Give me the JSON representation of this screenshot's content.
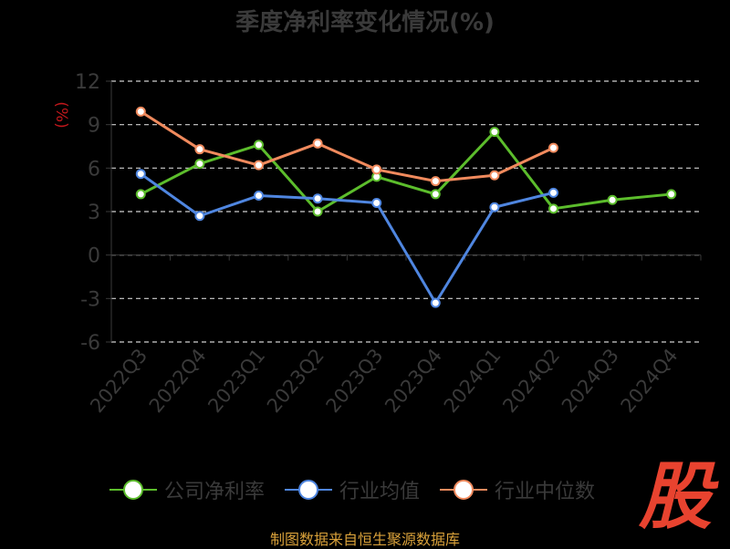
{
  "title": "季度净利率变化情况(%)",
  "source": "制图数据来自恒生聚源数据库",
  "logo_text": "股",
  "chart_data": {
    "type": "line",
    "title": "季度净利率变化情况(%)",
    "ylabel": "(%)",
    "xlabel": "",
    "ylim": [
      -6,
      12
    ],
    "yticks": [
      12,
      9,
      6,
      3,
      0,
      -3,
      -6
    ],
    "grid": true,
    "legend_position": "bottom",
    "categories": [
      "2022Q3",
      "2022Q4",
      "2023Q1",
      "2023Q2",
      "2023Q3",
      "2023Q4",
      "2024Q1",
      "2024Q2",
      "2024Q3",
      "2024Q4"
    ],
    "series": [
      {
        "name": "公司净利率",
        "color": "#5cbd2c",
        "values": [
          4.2,
          6.3,
          7.6,
          3.0,
          5.4,
          4.2,
          8.5,
          3.2,
          3.8,
          4.2
        ]
      },
      {
        "name": "行业均值",
        "color": "#4f86e0",
        "values": [
          5.6,
          2.7,
          4.1,
          3.9,
          3.6,
          -3.3,
          3.3,
          4.3,
          null,
          null
        ]
      },
      {
        "name": "行业中位数",
        "color": "#f08a5d",
        "values": [
          9.9,
          7.3,
          6.2,
          7.7,
          5.9,
          5.1,
          5.5,
          7.4,
          null,
          null
        ]
      }
    ]
  }
}
